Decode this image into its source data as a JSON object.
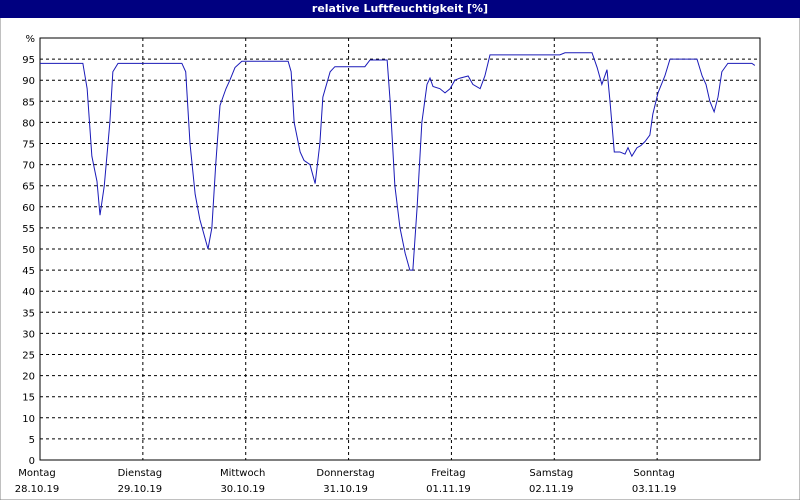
{
  "chart_data": {
    "type": "line",
    "title": "relative Luftfeuchtigkeit [%]",
    "xlim": [
      0,
      168
    ],
    "xticks": [
      {
        "value": 0,
        "label": "Montag"
      },
      {
        "value": 24,
        "label": "Dienstag"
      },
      {
        "value": 48,
        "label": "Mittwoch"
      },
      {
        "value": 72,
        "label": "Donnerstag"
      },
      {
        "value": 96,
        "label": "Freitag"
      },
      {
        "value": 120,
        "label": "Samstag"
      },
      {
        "value": 144,
        "label": "Sonntag"
      }
    ],
    "xtick_dates": [
      "28.10.19",
      "29.10.19",
      "30.10.19",
      "31.10.19",
      "01.11.19",
      "02.11.19",
      "03.11.19"
    ],
    "ylim": [
      0,
      100
    ],
    "yticks": [
      0,
      5,
      10,
      15,
      20,
      25,
      30,
      35,
      40,
      45,
      50,
      55,
      60,
      65,
      70,
      75,
      80,
      85,
      90,
      95,
      {
        "value": 100,
        "label": "%"
      }
    ],
    "grid": true,
    "series": [
      {
        "color": "#1a1ab8",
        "x": [
          0,
          10,
          11,
          12.1,
          13.3,
          14,
          15,
          16.3,
          17,
          18.2,
          33.1,
          34,
          35,
          36.2,
          37.3,
          39.2,
          40.1,
          41,
          42,
          43.4,
          44.3,
          45.5,
          47.1,
          57.9,
          58.6,
          59.3,
          60.7,
          61.6,
          63,
          64.2,
          65.3,
          66,
          67.7,
          68.8,
          75.8,
          77,
          81,
          81.7,
          82.8,
          84,
          85.2,
          86.3,
          87,
          88,
          89.1,
          90.3,
          91,
          91.7,
          93.3,
          94.5,
          95.7,
          96.8,
          98,
          99.9,
          101,
          102.7,
          103.8,
          105,
          121.3,
          122.5,
          128.8,
          130,
          131.1,
          132.3,
          133,
          134,
          135.3,
          136.5,
          137.2,
          138.1,
          139.3,
          140.2,
          141.2,
          142.3,
          143,
          144.2,
          145.8,
          147,
          153.3,
          154.5,
          155.4,
          156.3,
          157.3,
          158.2,
          159.1,
          160.5,
          166.1,
          166.8
        ],
        "values": [
          94,
          94,
          88,
          72,
          66,
          58,
          65,
          80,
          92,
          94,
          94,
          92,
          75,
          63,
          57,
          50,
          55,
          70,
          84,
          88,
          90,
          93,
          94.5,
          94.5,
          92,
          80,
          73,
          71,
          70,
          65.5,
          75,
          86,
          92,
          93.2,
          93.2,
          94.8,
          94.8,
          85,
          65,
          55,
          49,
          45,
          45,
          60,
          80,
          89,
          90.5,
          88.5,
          88,
          87,
          88,
          90,
          90.5,
          91,
          89,
          88,
          91,
          96,
          96,
          96.5,
          96.5,
          93,
          89,
          92.5,
          85,
          73,
          73,
          72.5,
          74,
          72,
          74,
          74.5,
          75.5,
          77,
          82,
          87,
          91,
          95,
          95,
          91,
          89,
          85,
          82.5,
          86,
          92,
          94,
          94,
          93.5
        ]
      }
    ]
  }
}
